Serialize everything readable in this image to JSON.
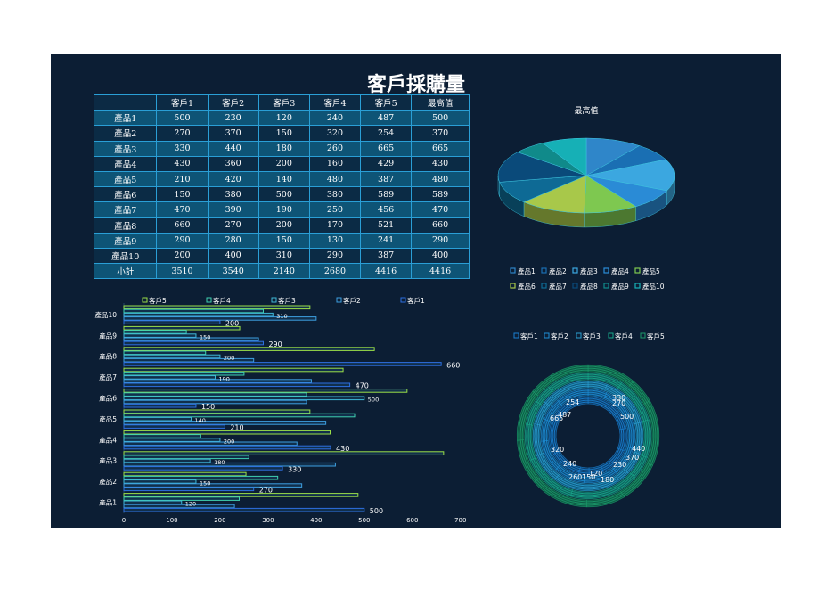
{
  "title": "客戶採購量",
  "table": {
    "headers": [
      "",
      "客戶1",
      "客戶2",
      "客戶3",
      "客戶4",
      "客戶5",
      "最高值"
    ],
    "rows": [
      [
        "產品1",
        "500",
        "230",
        "120",
        "240",
        "487",
        "500"
      ],
      [
        "產品2",
        "270",
        "370",
        "150",
        "320",
        "254",
        "370"
      ],
      [
        "產品3",
        "330",
        "440",
        "180",
        "260",
        "665",
        "665"
      ],
      [
        "產品4",
        "430",
        "360",
        "200",
        "160",
        "429",
        "430"
      ],
      [
        "產品5",
        "210",
        "420",
        "140",
        "480",
        "387",
        "480"
      ],
      [
        "產品6",
        "150",
        "380",
        "500",
        "380",
        "589",
        "589"
      ],
      [
        "產品7",
        "470",
        "390",
        "190",
        "250",
        "456",
        "470"
      ],
      [
        "產品8",
        "660",
        "270",
        "200",
        "170",
        "521",
        "660"
      ],
      [
        "產品9",
        "290",
        "280",
        "150",
        "130",
        "241",
        "290"
      ],
      [
        "產品10",
        "200",
        "400",
        "310",
        "290",
        "387",
        "400"
      ],
      [
        "小計",
        "3510",
        "3540",
        "2140",
        "2680",
        "4416",
        "4416"
      ]
    ]
  },
  "chart_data": [
    {
      "type": "pie",
      "title": "最高值",
      "categories": [
        "產品1",
        "產品2",
        "產品3",
        "產品4",
        "產品5",
        "產品6",
        "產品7",
        "產品8",
        "產品9",
        "產品10"
      ],
      "values": [
        500,
        370,
        665,
        430,
        480,
        589,
        470,
        660,
        290,
        400
      ],
      "colors": [
        "#2f86c9",
        "#1a6fb3",
        "#3ba7e0",
        "#2a8bd6",
        "#7ec850",
        "#a8c84a",
        "#0e6a95",
        "#0a4a7a",
        "#108a8a",
        "#16b0b6"
      ],
      "legend": "bottom"
    },
    {
      "type": "bar",
      "orientation": "horizontal",
      "categories": [
        "產品1",
        "產品2",
        "產品3",
        "產品4",
        "產品5",
        "產品6",
        "產品7",
        "產品8",
        "產品9",
        "產品10"
      ],
      "series": [
        {
          "name": "客戶5",
          "values": [
            487,
            254,
            665,
            429,
            387,
            589,
            456,
            521,
            241,
            387
          ],
          "color": "#9be048"
        },
        {
          "name": "客戶4",
          "values": [
            240,
            320,
            260,
            160,
            480,
            380,
            250,
            170,
            130,
            290
          ],
          "color": "#3fd0b0"
        },
        {
          "name": "客戶3",
          "values": [
            120,
            150,
            180,
            200,
            140,
            500,
            190,
            200,
            150,
            310
          ],
          "color": "#3fb8d6"
        },
        {
          "name": "客戶2",
          "values": [
            230,
            370,
            440,
            360,
            420,
            380,
            390,
            270,
            280,
            400
          ],
          "color": "#3d9fe0"
        },
        {
          "name": "客戶1",
          "values": [
            500,
            270,
            330,
            430,
            210,
            150,
            470,
            660,
            290,
            200
          ],
          "color": "#2d6fe0"
        }
      ],
      "labeled_series": [
        "客戶1",
        "客戶3"
      ],
      "xlim": [
        0,
        700
      ],
      "xticks": [
        0,
        100,
        200,
        300,
        400,
        500,
        600,
        700
      ],
      "legend": "top"
    },
    {
      "type": "pie",
      "subtype": "multi-ring donut",
      "categories": [
        "產品1",
        "產品2",
        "產品3",
        "產品4",
        "產品5",
        "產品6",
        "產品7",
        "產品8",
        "產品9",
        "產品10"
      ],
      "series": [
        {
          "name": "客戶1",
          "values": [
            500,
            270,
            330,
            430,
            210,
            150,
            470,
            660,
            290,
            200
          ],
          "color": "#1a7fd0"
        },
        {
          "name": "客戶2",
          "values": [
            230,
            370,
            440,
            360,
            420,
            380,
            390,
            270,
            280,
            400
          ],
          "color": "#1e8fd6"
        },
        {
          "name": "客戶3",
          "values": [
            120,
            150,
            180,
            200,
            140,
            500,
            190,
            200,
            150,
            310
          ],
          "color": "#2a9fd0"
        },
        {
          "name": "客戶4",
          "values": [
            240,
            320,
            260,
            160,
            480,
            380,
            250,
            170,
            130,
            290
          ],
          "color": "#18a88a"
        },
        {
          "name": "客戶5",
          "values": [
            487,
            254,
            665,
            429,
            387,
            589,
            456,
            521,
            241,
            387
          ],
          "color": "#1c9a6a"
        }
      ],
      "ring_labels": [
        {
          "text": "330"
        },
        {
          "text": "270"
        },
        {
          "text": "500"
        },
        {
          "text": "254"
        },
        {
          "text": "665"
        },
        {
          "text": "487"
        },
        {
          "text": "440"
        },
        {
          "text": "370"
        },
        {
          "text": "230"
        },
        {
          "text": "320"
        },
        {
          "text": "240"
        },
        {
          "text": "120"
        },
        {
          "text": "260"
        },
        {
          "text": "150"
        },
        {
          "text": "180"
        }
      ],
      "legend": "top"
    }
  ]
}
